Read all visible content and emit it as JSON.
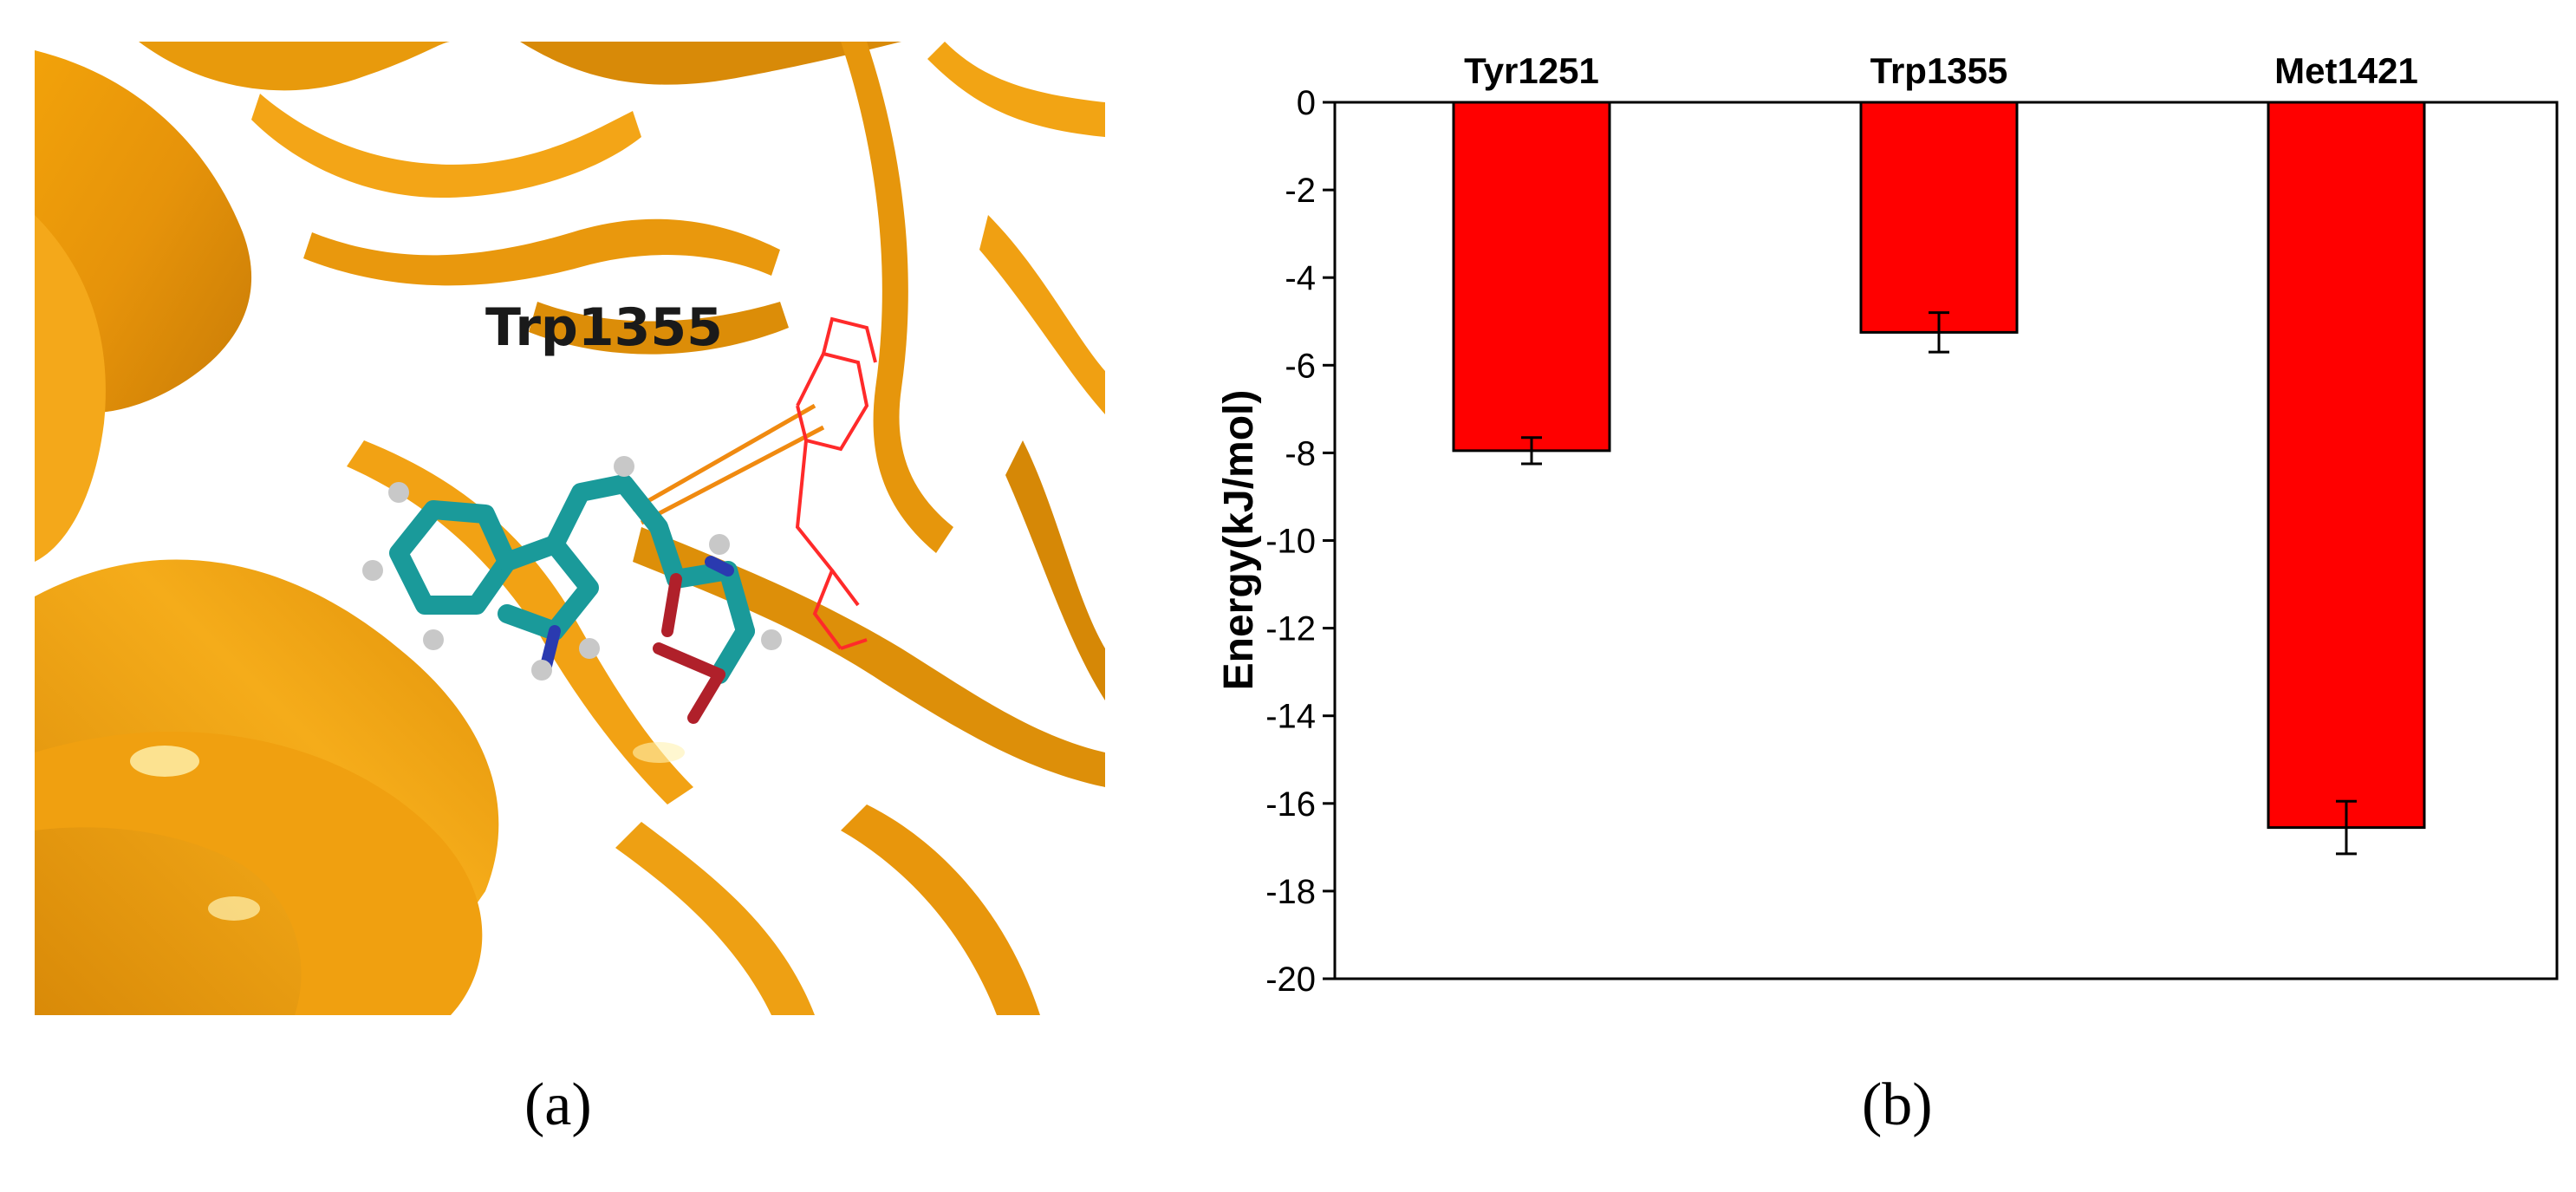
{
  "panel_a": {
    "label": "Trp1355",
    "caption": "(a)"
  },
  "panel_b": {
    "caption": "(b)"
  },
  "chart_data": {
    "type": "bar",
    "categories": [
      "Tyr1251",
      "Trp1355",
      "Met1421"
    ],
    "values": [
      -7.95,
      -5.25,
      -16.55
    ],
    "errors": [
      0.3,
      0.45,
      0.6
    ],
    "ylabel": "Energy(kJ/mol)",
    "ylim": [
      -20,
      0
    ],
    "yticks": [
      0,
      -2,
      -4,
      -6,
      -8,
      -10,
      -12,
      -14,
      -16,
      -18,
      -20
    ],
    "category_axis_position": "top",
    "bar_color": "#ff0000",
    "grid": false
  }
}
